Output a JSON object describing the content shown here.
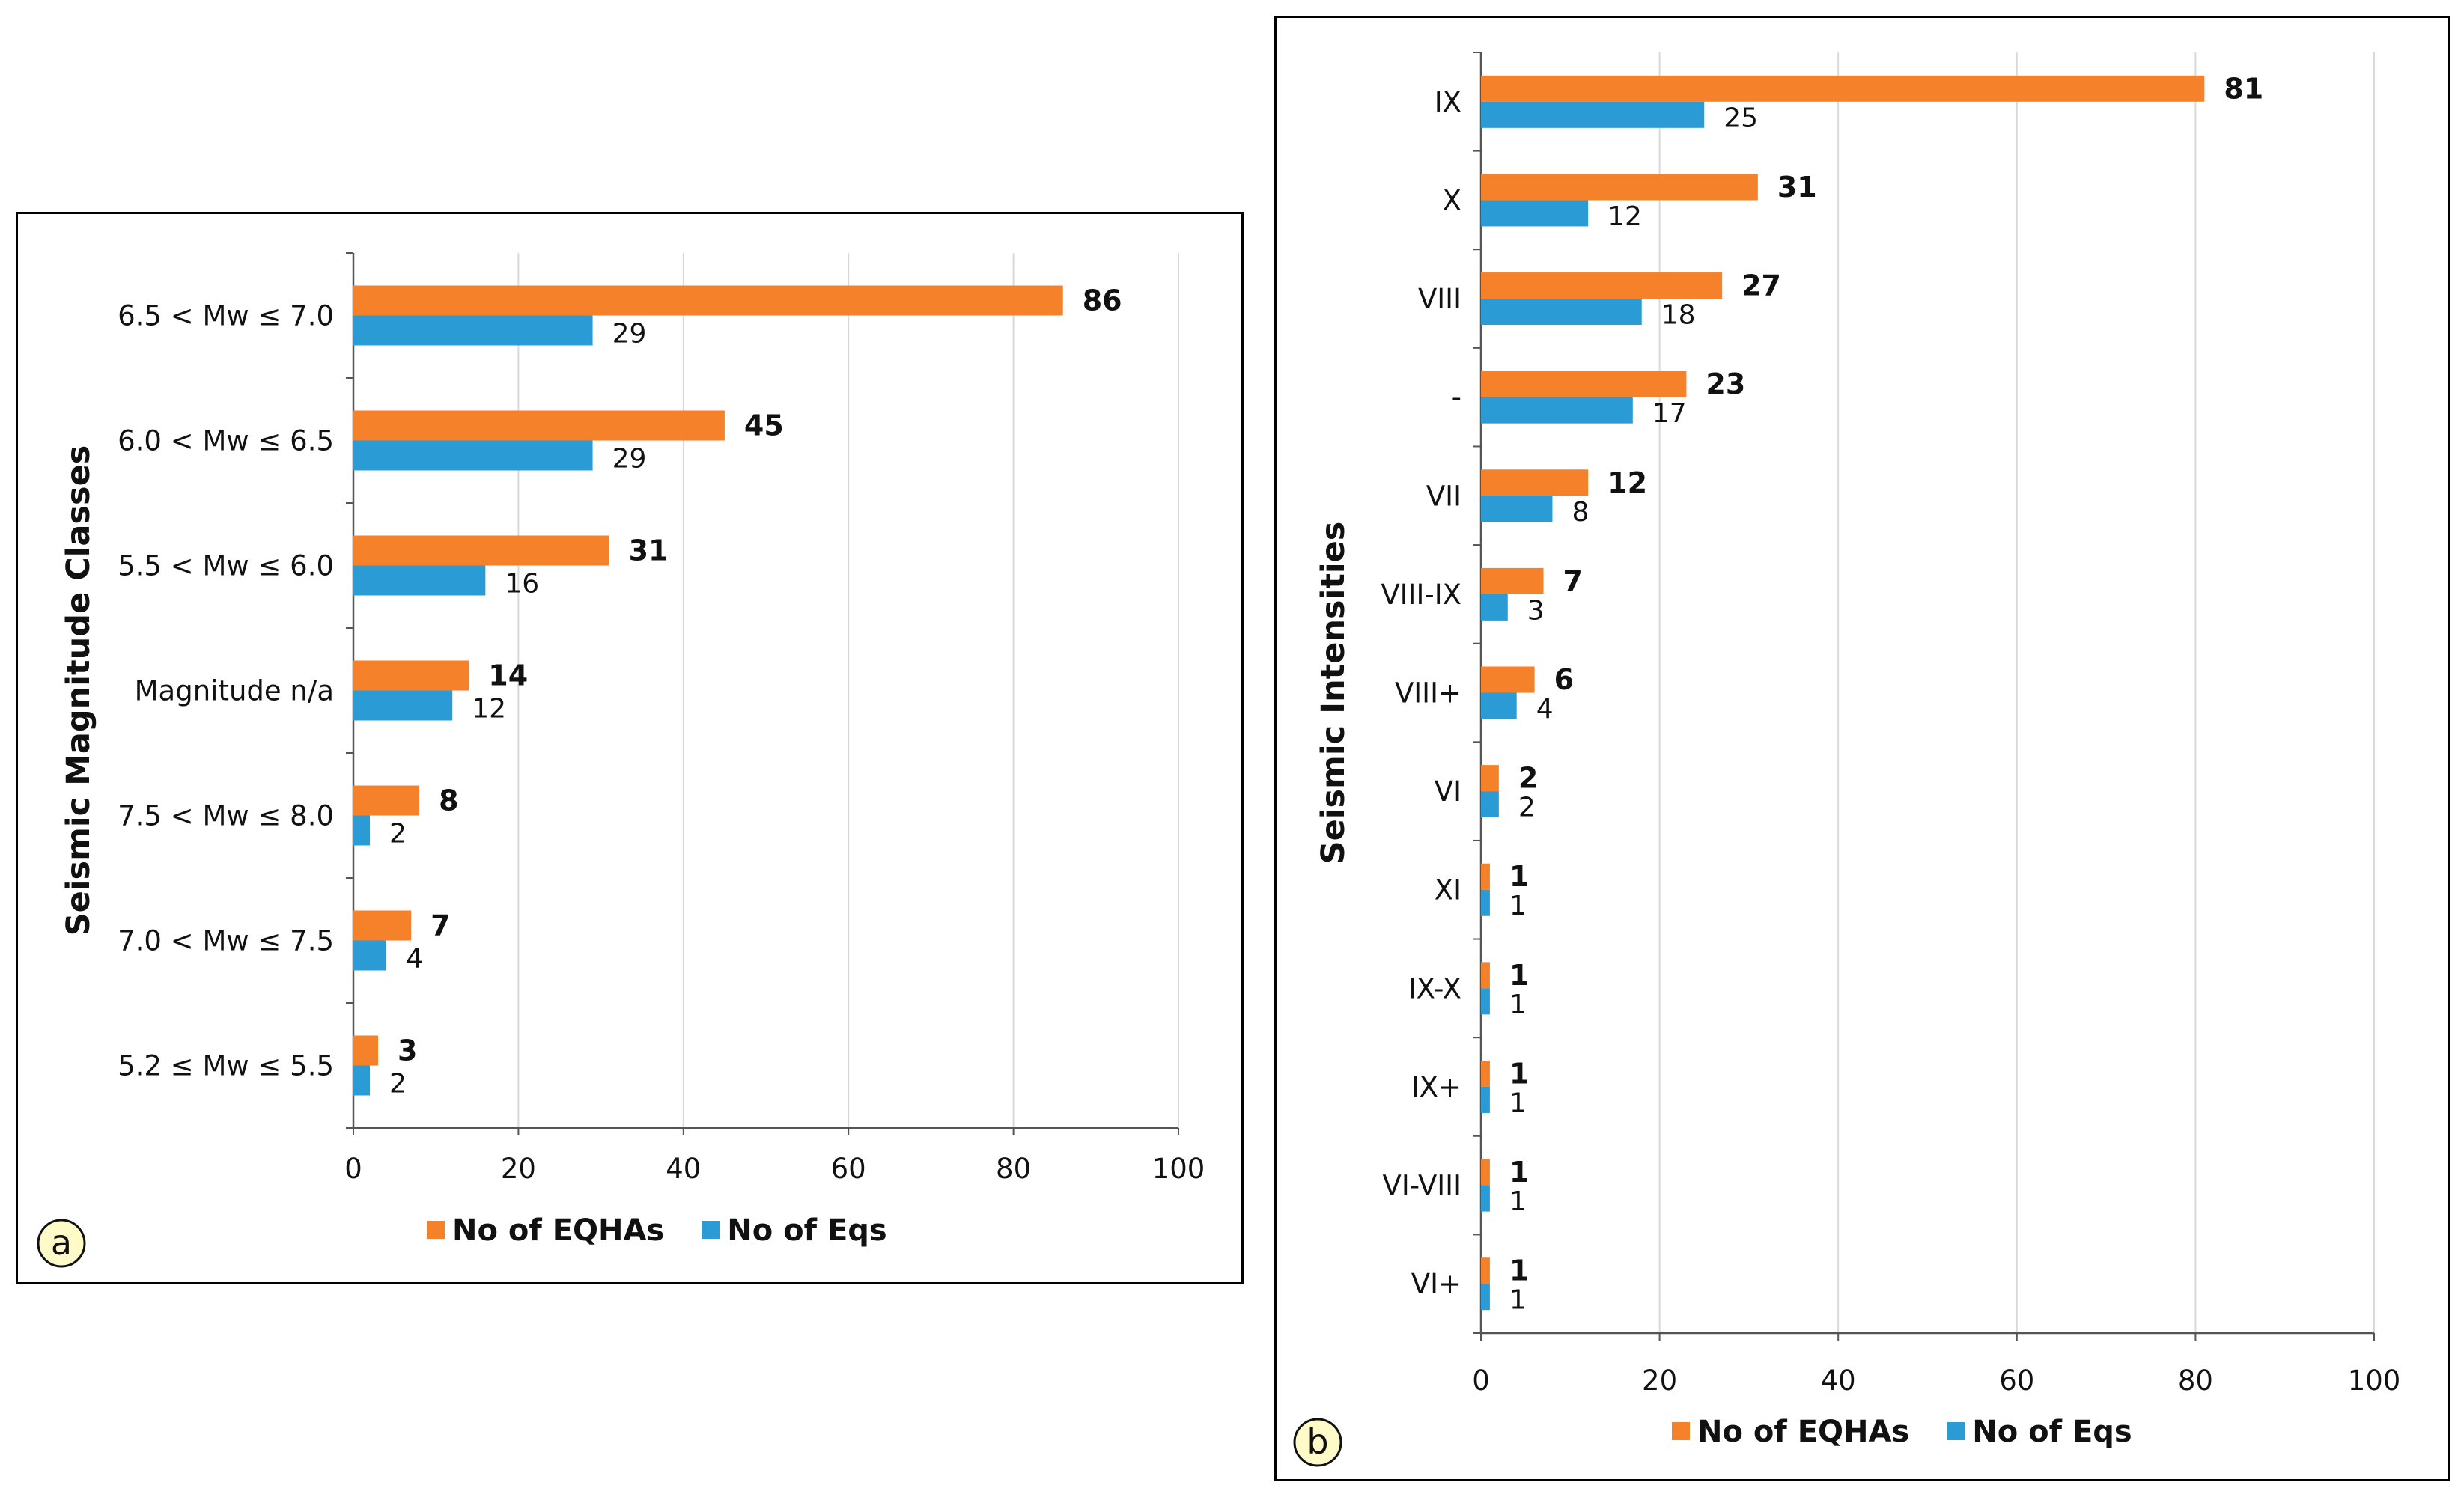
{
  "chart_data": [
    {
      "panel": "a",
      "type": "bar",
      "orientation": "horizontal",
      "ylabel": "Seismic Magnitude Classes",
      "categories": [
        "6.5 < Mw ≤ 7.0",
        "6.0 < Mw ≤ 6.5",
        "5.5 < Mw ≤ 6.0",
        "Magnitude n/a",
        "7.5 < Mw ≤ 8.0",
        "7.0 < Mw ≤ 7.5",
        "5.2 ≤ Mw ≤ 5.5"
      ],
      "series": [
        {
          "name": "No of EQHAs",
          "color": "#F5822A",
          "values": [
            86,
            45,
            31,
            14,
            8,
            7,
            3
          ]
        },
        {
          "name": "No of Eqs",
          "color": "#2B9BD6",
          "values": [
            29,
            29,
            16,
            12,
            2,
            4,
            2
          ]
        }
      ],
      "xlim": [
        0,
        100
      ],
      "xticks": [
        "0",
        "20",
        "40",
        "60",
        "80",
        "100"
      ],
      "grid": true,
      "legend": "bottom",
      "badge": "a"
    },
    {
      "panel": "b",
      "type": "bar",
      "orientation": "horizontal",
      "ylabel": "Seismic Intensities",
      "categories": [
        "IX",
        "X",
        "VIII",
        "-",
        "VII",
        "VIII-IX",
        "VIII+",
        "VI",
        "XI",
        "IX-X",
        "IX+",
        "VI-VIII",
        "VI+"
      ],
      "series": [
        {
          "name": "No of EQHAs",
          "color": "#F5822A",
          "values": [
            81,
            31,
            27,
            23,
            12,
            7,
            6,
            2,
            1,
            1,
            1,
            1,
            1
          ]
        },
        {
          "name": "No of Eqs",
          "color": "#2B9BD6",
          "values": [
            25,
            12,
            18,
            17,
            8,
            3,
            4,
            2,
            1,
            1,
            1,
            1,
            1
          ]
        }
      ],
      "xlim": [
        0,
        100
      ],
      "xticks": [
        "0",
        "20",
        "40",
        "60",
        "80",
        "100"
      ],
      "grid": true,
      "legend": "bottom",
      "badge": "b"
    }
  ]
}
